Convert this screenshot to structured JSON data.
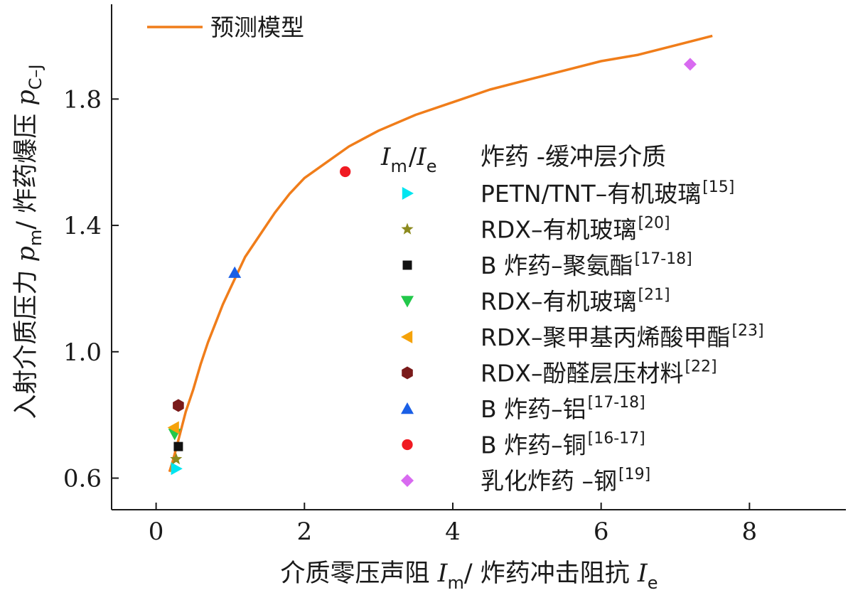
{
  "chart_data": {
    "type": "scatter",
    "xlim": [
      -0.6,
      9.3
    ],
    "ylim": [
      0.5,
      2.1
    ],
    "xticks": [
      0,
      2,
      4,
      6,
      8
    ],
    "yticks": [
      0.6,
      1.0,
      1.4,
      1.8
    ],
    "xtick_labels": [
      "0",
      "2",
      "4",
      "6",
      "8"
    ],
    "ytick_labels": [
      "0.6",
      "1.0",
      "1.4",
      "1.8"
    ],
    "xlabel": {
      "prefix": "介质零压声阻 ",
      "sym1": "I",
      "sub1": "m",
      "mid": "/ 炸药冲击阻抗 ",
      "sym2": "I",
      "sub2": "e"
    },
    "ylabel": {
      "prefix": "入射介质压力 ",
      "sym1": "p",
      "sub1": "m",
      "mid": "/ 炸药爆压 ",
      "sym2": "p",
      "sub2": "C–J"
    },
    "model": {
      "name": "预测模型",
      "color": "#f07d1a",
      "x": [
        0.18,
        0.22,
        0.3,
        0.4,
        0.5,
        0.6,
        0.7,
        0.8,
        0.9,
        1.0,
        1.2,
        1.4,
        1.6,
        1.8,
        2.0,
        2.3,
        2.6,
        3.0,
        3.5,
        4.0,
        4.5,
        5.0,
        5.5,
        6.0,
        6.5,
        7.0,
        7.5
      ],
      "y": [
        0.62,
        0.65,
        0.72,
        0.81,
        0.88,
        0.96,
        1.03,
        1.09,
        1.15,
        1.2,
        1.3,
        1.37,
        1.44,
        1.5,
        1.55,
        1.6,
        1.65,
        1.7,
        1.75,
        1.79,
        1.83,
        1.86,
        1.89,
        1.92,
        1.94,
        1.97,
        2.0
      ]
    },
    "legend_header": {
      "sym1": "I",
      "sub1": "m",
      "sep": "/",
      "sym2": "I",
      "sub2": "e",
      "title": "炸药 -缓冲层介质"
    },
    "series": [
      {
        "name": "PETN/TNT–有机玻璃",
        "ref": "[15]",
        "marker": "triangle-right",
        "color": "#00e5f0",
        "x": [
          0.27
        ],
        "y": [
          0.63
        ]
      },
      {
        "name": "RDX–有机玻璃",
        "ref": "[20]",
        "marker": "star",
        "color": "#8c8a1e",
        "x": [
          0.27
        ],
        "y": [
          0.66
        ]
      },
      {
        "name": "B 炸药–聚氨酯",
        "ref": "[17-18]",
        "marker": "square",
        "color": "#111111",
        "x": [
          0.3
        ],
        "y": [
          0.7
        ]
      },
      {
        "name": "RDX–有机玻璃",
        "ref": "[21]",
        "marker": "triangle-down",
        "color": "#22c84a",
        "x": [
          0.25
        ],
        "y": [
          0.74
        ]
      },
      {
        "name": "RDX–聚甲基丙烯酸甲酯",
        "ref": "[23]",
        "marker": "triangle-left",
        "color": "#f5a20a",
        "x": [
          0.24
        ],
        "y": [
          0.76
        ]
      },
      {
        "name": "RDX–酚醛层压材料",
        "ref": "[22]",
        "marker": "hexagon",
        "color": "#7a1a1a",
        "x": [
          0.3
        ],
        "y": [
          0.83
        ]
      },
      {
        "name": "B 炸药–铝",
        "ref": "[17-18]",
        "marker": "triangle-up",
        "color": "#1a5fe6",
        "x": [
          1.06
        ],
        "y": [
          1.25
        ]
      },
      {
        "name": "B 炸药–铜",
        "ref": "[16-17]",
        "marker": "circle",
        "color": "#f01a22",
        "x": [
          2.55
        ],
        "y": [
          1.57
        ]
      },
      {
        "name": "乳化炸药 –钢",
        "ref": "[19]",
        "marker": "diamond",
        "color": "#d86af0",
        "x": [
          7.2
        ],
        "y": [
          1.91
        ]
      }
    ]
  }
}
